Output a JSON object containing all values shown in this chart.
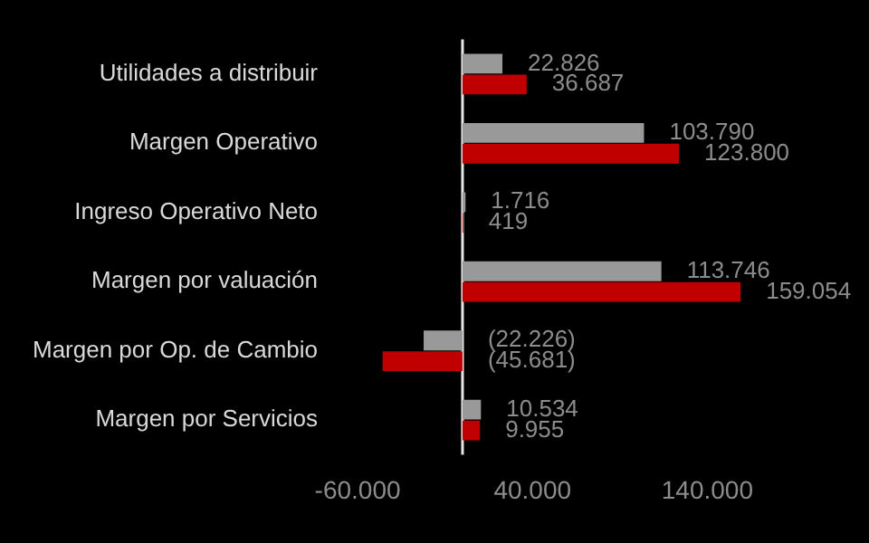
{
  "chart_data": {
    "type": "bar",
    "orientation": "horizontal",
    "categories": [
      "Utilidades a distribuir",
      "Margen Operativo",
      "Ingreso Operativo Neto",
      "Margen por valuación",
      "Margen por Op. de Cambio",
      "Margen por Servicios"
    ],
    "series": [
      {
        "color": "#999999",
        "values": [
          22826,
          103790,
          1716,
          113746,
          -22226,
          10534
        ],
        "value_labels": [
          "22.826",
          "103.790",
          "1.716",
          "113.746",
          "(22.226)",
          "10.534"
        ]
      },
      {
        "color": "#c00000",
        "values": [
          36687,
          123800,
          419,
          159054,
          -45681,
          9955
        ],
        "value_labels": [
          "36.687",
          "123.800",
          "419",
          "159.054",
          "(45.681)",
          "9.955"
        ]
      }
    ],
    "xlim": [
      -60000,
      160000
    ],
    "xticks": [
      {
        "value": -60000,
        "label": "-60.000"
      },
      {
        "value": 40000,
        "label": "40.000"
      },
      {
        "value": 140000,
        "label": "140.000"
      }
    ],
    "legend": false
  }
}
